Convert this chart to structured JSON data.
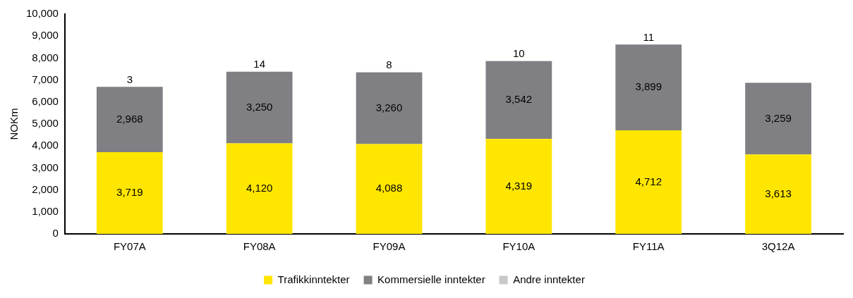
{
  "chart_data": {
    "type": "bar",
    "stacked": true,
    "ylabel": "NOKm",
    "categories": [
      "FY07A",
      "FY08A",
      "FY09A",
      "FY10A",
      "FY11A",
      "3Q12A"
    ],
    "series": [
      {
        "name": "Trafikkinntekter",
        "color": "#ffe600",
        "values": [
          3719,
          4120,
          4088,
          4319,
          4712,
          3613
        ],
        "value_labels": [
          "3,719",
          "4,120",
          "4,088",
          "4,319",
          "4,712",
          "3,613"
        ]
      },
      {
        "name": "Kommersielle inntekter",
        "color": "#807f83",
        "values": [
          2968,
          3250,
          3260,
          3542,
          3899,
          3259
        ],
        "value_labels": [
          "2,968",
          "3,250",
          "3,260",
          "3,542",
          "3,899",
          "3,259"
        ]
      },
      {
        "name": "Andre inntekter",
        "color": "#c8c8c8",
        "values": [
          3,
          14,
          8,
          10,
          11,
          null
        ],
        "value_labels": [
          "3",
          "14",
          "8",
          "10",
          "11",
          null
        ]
      }
    ],
    "ylim": [
      0,
      10000
    ],
    "yticks": [
      {
        "value": 0,
        "label": "0"
      },
      {
        "value": 1000,
        "label": "1,000"
      },
      {
        "value": 2000,
        "label": "2,000"
      },
      {
        "value": 3000,
        "label": "3,000"
      },
      {
        "value": 4000,
        "label": "4,000"
      },
      {
        "value": 5000,
        "label": "5,000"
      },
      {
        "value": 6000,
        "label": "6,000"
      },
      {
        "value": 7000,
        "label": "7,000"
      },
      {
        "value": 8000,
        "label": "8,000"
      },
      {
        "value": 9000,
        "label": "9,000"
      },
      {
        "value": 10000,
        "label": "10,000"
      }
    ],
    "grid": false,
    "legend": "bottom"
  }
}
